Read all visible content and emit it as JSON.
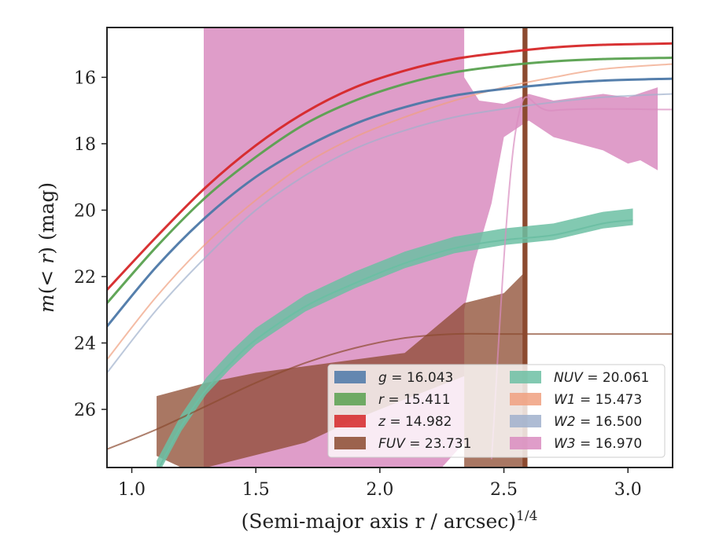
{
  "chart_data": {
    "type": "line",
    "xlabel": "(Semi-major axis r / arcsec)",
    "xlabel_sup": "1/4",
    "ylabel_parts": [
      "m",
      "(< ",
      "r",
      ") (mag)"
    ],
    "xlim": [
      0.9,
      3.18
    ],
    "ylim": [
      27.75,
      14.5
    ],
    "y_inverted": true,
    "xticks": [
      1.0,
      1.5,
      2.0,
      2.5,
      3.0
    ],
    "xtick_labels": [
      "1.0",
      "1.5",
      "2.0",
      "2.5",
      "3.0"
    ],
    "yticks": [
      16,
      18,
      20,
      22,
      24,
      26
    ],
    "ytick_labels": [
      "16",
      "18",
      "20",
      "22",
      "24",
      "26"
    ],
    "legend_position": "lower right",
    "series": [
      {
        "name": "g",
        "label": "g = 16.043",
        "color": "#4c78a8",
        "x": [
          0.9,
          1.1,
          1.3,
          1.5,
          1.7,
          1.9,
          2.1,
          2.3,
          2.5,
          2.7,
          2.9,
          3.18
        ],
        "y": [
          23.5,
          21.7,
          20.2,
          19.0,
          18.1,
          17.4,
          16.9,
          16.55,
          16.35,
          16.2,
          16.1,
          16.04
        ]
      },
      {
        "name": "r",
        "label": "r = 15.411",
        "color": "#59a14f",
        "x": [
          0.9,
          1.1,
          1.3,
          1.5,
          1.7,
          1.9,
          2.1,
          2.3,
          2.5,
          2.7,
          2.9,
          3.18
        ],
        "y": [
          22.8,
          21.1,
          19.6,
          18.4,
          17.4,
          16.7,
          16.2,
          15.85,
          15.65,
          15.52,
          15.45,
          15.41
        ]
      },
      {
        "name": "z",
        "label": "z = 14.982",
        "color": "#d62728",
        "x": [
          0.9,
          1.1,
          1.3,
          1.5,
          1.7,
          1.9,
          2.1,
          2.3,
          2.5,
          2.7,
          2.9,
          3.18
        ],
        "y": [
          22.4,
          20.8,
          19.3,
          18.05,
          17.05,
          16.3,
          15.8,
          15.45,
          15.25,
          15.1,
          15.02,
          14.98
        ]
      },
      {
        "name": "FUV",
        "label": "FUV = 23.731",
        "color": "#8c4a2f",
        "x": [
          0.9,
          1.1,
          1.3,
          1.5,
          1.7,
          1.9,
          2.1,
          2.3,
          2.5,
          2.7,
          2.9,
          3.18
        ],
        "y": [
          27.2,
          26.6,
          25.9,
          25.2,
          24.6,
          24.15,
          23.85,
          23.73,
          23.73,
          23.73,
          23.73,
          23.73
        ]
      },
      {
        "name": "NUV",
        "label": "NUV = 20.061",
        "color": "#6cbfa3",
        "x": [
          1.1,
          1.2,
          1.3,
          1.4,
          1.5,
          1.7,
          1.9,
          2.1,
          2.3,
          2.5,
          2.7,
          2.9,
          3.02
        ],
        "y": [
          27.9,
          26.5,
          25.4,
          24.6,
          23.9,
          22.9,
          22.2,
          21.6,
          21.15,
          20.9,
          20.75,
          20.4,
          20.3
        ]
      },
      {
        "name": "W1",
        "label": "W1 = 15.473",
        "color": "#f0a07f",
        "x": [
          0.9,
          1.1,
          1.3,
          1.5,
          1.7,
          1.9,
          2.1,
          2.3,
          2.5,
          2.7,
          2.9,
          3.18
        ],
        "y": [
          24.5,
          22.6,
          21.0,
          19.7,
          18.6,
          17.8,
          17.2,
          16.7,
          16.3,
          16.0,
          15.75,
          15.6
        ]
      },
      {
        "name": "W2",
        "label": "W2 = 16.500",
        "color": "#a0b0cc",
        "x": [
          0.9,
          1.1,
          1.3,
          1.5,
          1.7,
          1.9,
          2.1,
          2.3,
          2.5,
          2.7,
          2.9,
          3.18
        ],
        "y": [
          24.9,
          23.0,
          21.4,
          20.0,
          18.95,
          18.15,
          17.6,
          17.2,
          16.95,
          16.75,
          16.6,
          16.5
        ]
      },
      {
        "name": "W3",
        "label": "W3 = 16.970",
        "color": "#d98cbf",
        "x": [
          1.29,
          1.5,
          1.7,
          1.9,
          2.1,
          2.3,
          2.34
        ],
        "y": [
          17.0,
          17.0,
          17.0,
          17.0,
          17.0,
          17.0,
          16.97
        ]
      }
    ],
    "legend": [
      {
        "label_pre": "",
        "label_italic": "g",
        "value": " = 16.043",
        "color": "#4c78a8"
      },
      {
        "label_pre": "",
        "label_italic": "r",
        "value": " = 15.411",
        "color": "#59a14f"
      },
      {
        "label_pre": "",
        "label_italic": "z",
        "value": " = 14.982",
        "color": "#d62728"
      },
      {
        "label_pre": "",
        "label_italic": "FUV",
        "value": " = 23.731",
        "color": "#8c4a2f"
      },
      {
        "label_pre": "",
        "label_italic": "NUV",
        "value": " = 20.061",
        "color": "#6cbfa3"
      },
      {
        "label_pre": "",
        "label_italic": "W1",
        "value": " = 15.473",
        "color": "#f0a07f"
      },
      {
        "label_pre": "",
        "label_italic": "W2",
        "value": " = 16.500",
        "color": "#a0b0cc"
      },
      {
        "label_pre": "",
        "label_italic": "W3",
        "value": " = 16.970",
        "color": "#d98cbf"
      }
    ]
  }
}
